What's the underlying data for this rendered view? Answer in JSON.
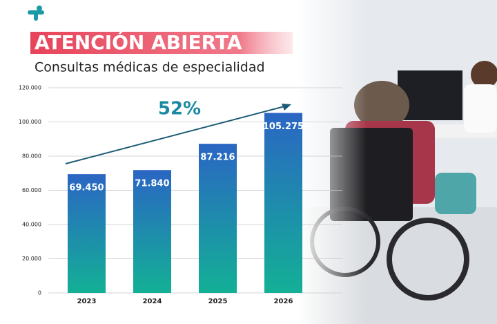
{
  "chart_data": {
    "type": "bar",
    "title": "ATENCIÓN ABIERTA",
    "subtitle": "Consultas médicas de especialidad",
    "annotation": "52%",
    "categories": [
      "2023",
      "2024",
      "2025",
      "2026"
    ],
    "values": [
      69450,
      71840,
      87216,
      105275
    ],
    "value_labels": [
      "69.450",
      "71.840",
      "87.216",
      "105.275"
    ],
    "colors": [
      "#2a66c3",
      "#13b096"
    ],
    "ylim": [
      0,
      120000
    ],
    "yticks": [
      0,
      {
        "value": 20000,
        "label": "20.000"
      },
      {
        "value": 40000,
        "label": "40.000"
      },
      {
        "value": 60000,
        "label": "60.000"
      },
      {
        "value": 80000,
        "label": "80.000"
      },
      {
        "value": 100000,
        "label": "100.000"
      },
      {
        "value": 120000,
        "label": "120.000"
      }
    ],
    "grid": true
  }
}
